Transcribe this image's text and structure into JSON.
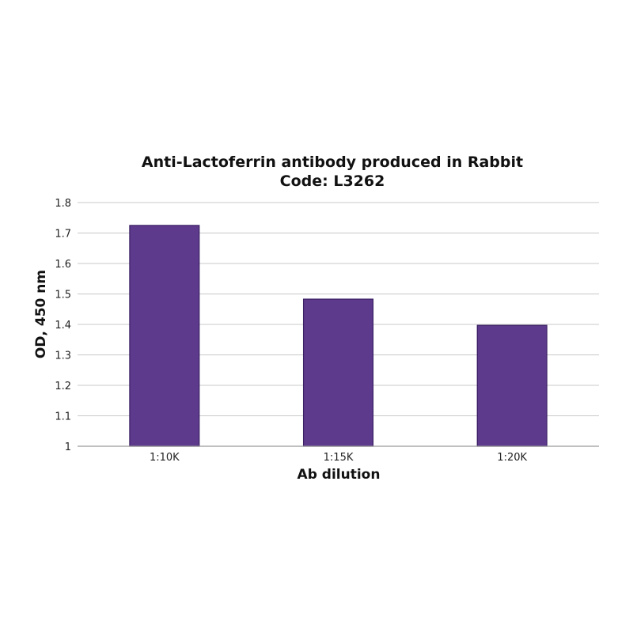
{
  "chart_data": {
    "type": "bar",
    "title": "Anti-Lactoferrin antibody produced in Rabbit",
    "subtitle": "Code: L3262",
    "xlabel": "Ab dilution",
    "ylabel": "OD, 450 nm",
    "categories": [
      "1:10K",
      "1:15K",
      "1:20K"
    ],
    "values": [
      1.725,
      1.483,
      1.397
    ],
    "ylim": [
      1,
      1.8
    ],
    "yticks": [
      "1",
      "1.1",
      "1.2",
      "1.3",
      "1.4",
      "1.5",
      "1.6",
      "1.7",
      "1.8"
    ],
    "grid": "horizontal",
    "bar_color": "#5e3a8c",
    "legend": "none"
  }
}
